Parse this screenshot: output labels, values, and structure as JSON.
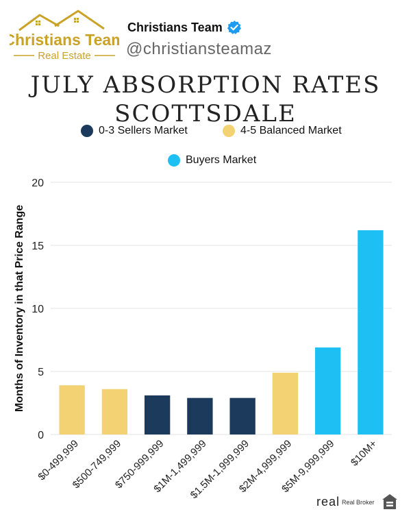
{
  "header": {
    "logo_line1": "Christians Team",
    "logo_line2": "Real Estate",
    "brand_name": "Christians Team",
    "handle": "@christiansteamaz",
    "verified_icon": "verified-badge-icon"
  },
  "colors": {
    "seller": "#1b3a5c",
    "balanced": "#f2d272",
    "buyer": "#1ec0f3",
    "logo_gold": "#c9a227"
  },
  "chart_data": {
    "type": "bar",
    "title": "JULY ABSORPTION RATES SCOTTSDALE",
    "title_lines": [
      "JULY ABSORPTION RATES",
      "SCOTTSDALE"
    ],
    "xlabel": "",
    "ylabel": "Months of Inventory in that Price Range",
    "ylim": [
      0,
      20
    ],
    "yticks": [
      0,
      5,
      10,
      15,
      20
    ],
    "grid": true,
    "legend": [
      {
        "label": "0-3 Sellers Market",
        "key": "seller"
      },
      {
        "label": "4-5 Balanced Market",
        "key": "balanced"
      },
      {
        "label": "Buyers Market",
        "key": "buyer"
      }
    ],
    "categories": [
      "$0-499,999",
      "$500-749,999",
      "$750-999,999",
      "$1M-1,499,999",
      "$1.5M-1,999,999",
      "$2M-4,999,999",
      "$5M-9,999,999",
      "$10M+"
    ],
    "values": [
      3.9,
      3.6,
      3.1,
      2.9,
      2.9,
      4.9,
      6.9,
      16.2
    ],
    "market": [
      "balanced",
      "balanced",
      "seller",
      "seller",
      "seller",
      "balanced",
      "buyer",
      "buyer"
    ]
  },
  "footer": {
    "brand": "real",
    "brand_sub": "Real Broker",
    "house_icon": "equal-housing-icon"
  }
}
